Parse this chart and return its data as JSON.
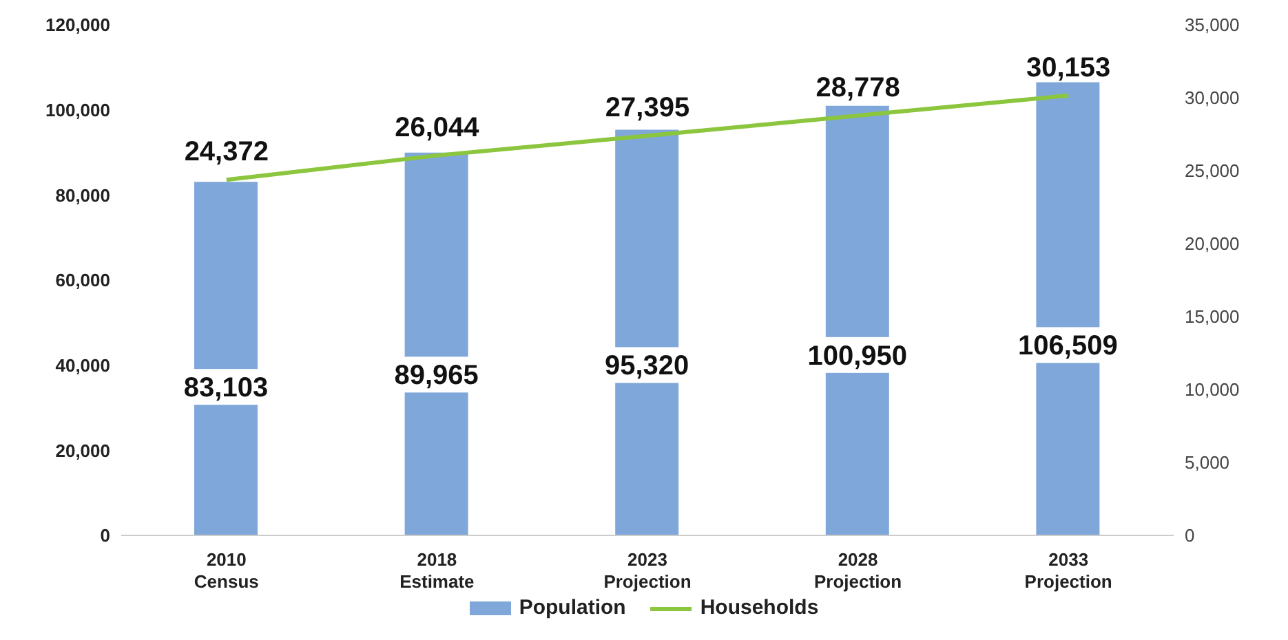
{
  "chart_data": {
    "type": "bar",
    "categories": [
      "2010\nCensus",
      "2018\nEstimate",
      "2023\nProjection",
      "2028\nProjection",
      "2033\nProjection"
    ],
    "series": [
      {
        "name": "Population",
        "color": "#7fa7d9",
        "values": [
          83103,
          89965,
          95320,
          100950,
          106509
        ],
        "value_labels": [
          "83,103",
          "89,965",
          "95,320",
          "100,950",
          "106,509"
        ]
      },
      {
        "name": "Households",
        "type": "line",
        "axis": "y2",
        "color": "#8cc63f",
        "values": [
          24372,
          26044,
          27395,
          28778,
          30153
        ],
        "value_labels": [
          "24,372",
          "26,044",
          "27,395",
          "28,778",
          "30,153"
        ]
      }
    ],
    "ylim": [
      0,
      120000
    ],
    "yticks": [
      0,
      {
        "value": 20000,
        "label": "20,000"
      },
      {
        "value": 40000,
        "label": "40,000"
      },
      {
        "value": 60000,
        "label": "60,000"
      },
      {
        "value": 80000,
        "label": "80,000"
      },
      {
        "value": 100000,
        "label": "100,000"
      },
      {
        "value": 120000,
        "label": "120,000"
      }
    ],
    "y2lim": [
      0,
      35000
    ],
    "y2ticks": [
      0,
      {
        "value": 5000,
        "label": "5,000"
      },
      {
        "value": 10000,
        "label": "10,000"
      },
      {
        "value": 15000,
        "label": "15,000"
      },
      {
        "value": 20000,
        "label": "20,000"
      },
      {
        "value": 25000,
        "label": "25,000"
      },
      {
        "value": 30000,
        "label": "30,000"
      },
      {
        "value": 35000,
        "label": "35,000"
      }
    ],
    "legend": "bottom"
  }
}
